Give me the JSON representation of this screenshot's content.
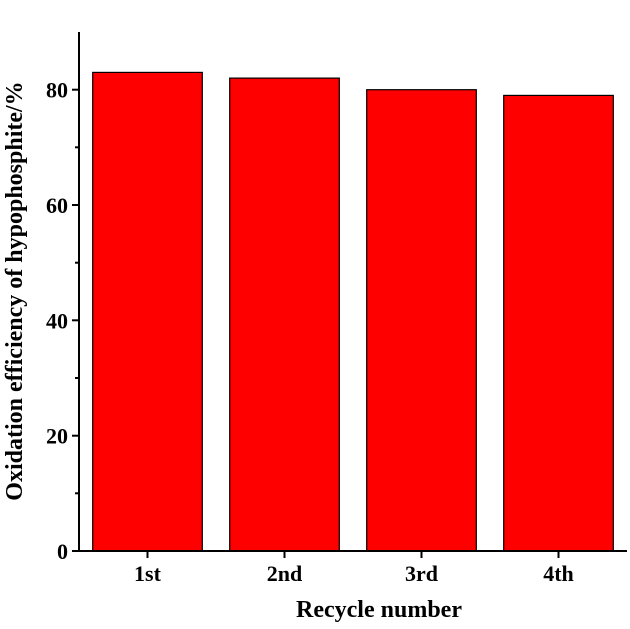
{
  "chart_data": {
    "type": "bar",
    "categories": [
      "1st",
      "2nd",
      "3rd",
      "4th"
    ],
    "values": [
      83,
      82,
      80,
      79
    ],
    "xlabel": "Recycle number",
    "ylabel": "Oxidation efficiency of hypophosphite/%",
    "ylim": [
      0,
      90
    ],
    "yticks": [
      0,
      20,
      40,
      60,
      80
    ],
    "bar_color": "#ff0000",
    "grid": false,
    "legend": "none"
  }
}
